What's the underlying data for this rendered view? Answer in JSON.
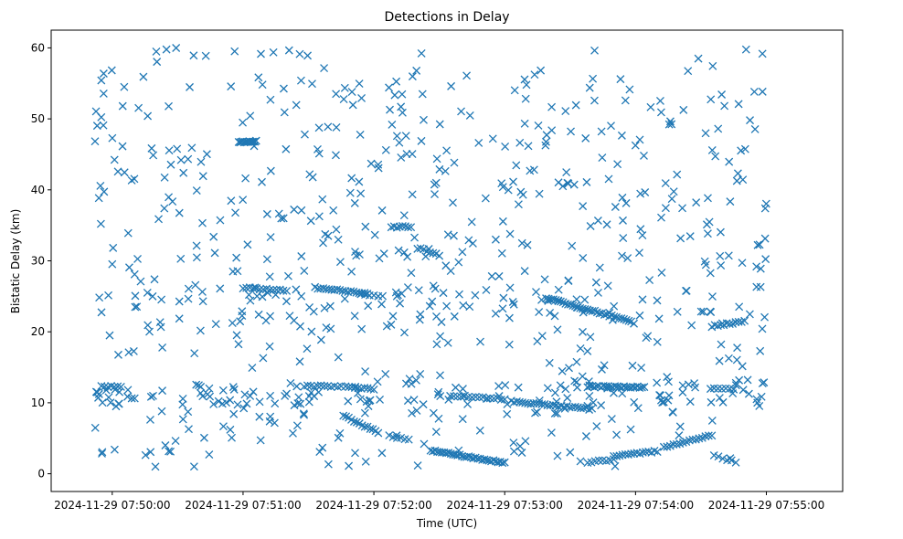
{
  "chart_data": {
    "type": "scatter",
    "title": "Detections in Delay",
    "xlabel": "Time (UTC)",
    "ylabel": "Bistatic Delay (km)",
    "marker": "x",
    "color": "#1f77b4",
    "xlim_seconds": [
      -28,
      335
    ],
    "ylim": [
      -2.5,
      62.5
    ],
    "x_ticks": [
      {
        "t": 0,
        "label": "2024-11-29 07:50:00"
      },
      {
        "t": 60,
        "label": "2024-11-29 07:51:00"
      },
      {
        "t": 120,
        "label": "2024-11-29 07:52:00"
      },
      {
        "t": 180,
        "label": "2024-11-29 07:53:00"
      },
      {
        "t": 240,
        "label": "2024-11-29 07:54:00"
      },
      {
        "t": 300,
        "label": "2024-11-29 07:55:00"
      }
    ],
    "y_ticks": [
      {
        "v": 0,
        "label": "0"
      },
      {
        "v": 10,
        "label": "10"
      },
      {
        "v": 20,
        "label": "20"
      },
      {
        "v": 30,
        "label": "30"
      },
      {
        "v": 40,
        "label": "40"
      },
      {
        "v": 50,
        "label": "50"
      },
      {
        "v": 60,
        "label": "60"
      }
    ],
    "time_range_seconds": [
      -8,
      300
    ],
    "scatter_seed": 7,
    "scatter_count": 760,
    "tracks": [
      {
        "t0": 58,
        "t1": 66,
        "v0": 46.8,
        "v1": 46.8,
        "n": 14
      },
      {
        "t0": 60,
        "t1": 80,
        "v0": 26.2,
        "v1": 25.8,
        "n": 14
      },
      {
        "t0": 93,
        "t1": 117,
        "v0": 26.2,
        "v1": 25.4,
        "n": 20
      },
      {
        "t0": 114,
        "t1": 124,
        "v0": 25.4,
        "v1": 25.0,
        "n": 6
      },
      {
        "t0": 128,
        "t1": 137,
        "v0": 34.8,
        "v1": 34.8,
        "n": 8
      },
      {
        "t0": 140,
        "t1": 150,
        "v0": 31.8,
        "v1": 30.8,
        "n": 8
      },
      {
        "t0": -5,
        "t1": 4,
        "v0": 12.3,
        "v1": 12.2,
        "n": 7
      },
      {
        "t0": 88,
        "t1": 105,
        "v0": 12.4,
        "v1": 12.3,
        "n": 12
      },
      {
        "t0": 107,
        "t1": 120,
        "v0": 12.2,
        "v1": 11.9,
        "n": 10
      },
      {
        "t0": 106,
        "t1": 122,
        "v0": 8.2,
        "v1": 5.8,
        "n": 14
      },
      {
        "t0": 127,
        "t1": 136,
        "v0": 5.3,
        "v1": 4.9,
        "n": 6
      },
      {
        "t0": 146,
        "t1": 180,
        "v0": 3.3,
        "v1": 1.5,
        "n": 34
      },
      {
        "t0": 155,
        "t1": 180,
        "v0": 11.0,
        "v1": 10.5,
        "n": 16
      },
      {
        "t0": 183,
        "t1": 220,
        "v0": 10.2,
        "v1": 9.1,
        "n": 30
      },
      {
        "t0": 199,
        "t1": 238,
        "v0": 24.8,
        "v1": 21.4,
        "n": 36
      },
      {
        "t0": 218,
        "t1": 244,
        "v0": 12.3,
        "v1": 12.2,
        "n": 26
      },
      {
        "t0": 218,
        "t1": 230,
        "v0": 1.6,
        "v1": 2.0,
        "n": 8
      },
      {
        "t0": 230,
        "t1": 250,
        "v0": 2.4,
        "v1": 3.2,
        "n": 16
      },
      {
        "t0": 253,
        "t1": 275,
        "v0": 3.8,
        "v1": 5.4,
        "n": 16
      },
      {
        "t0": 275,
        "t1": 290,
        "v0": 20.8,
        "v1": 21.5,
        "n": 12
      },
      {
        "t0": 276,
        "t1": 285,
        "v0": 12.1,
        "v1": 12.0,
        "n": 6
      },
      {
        "t0": 276,
        "t1": 286,
        "v0": 2.5,
        "v1": 1.7,
        "n": 6
      }
    ]
  }
}
